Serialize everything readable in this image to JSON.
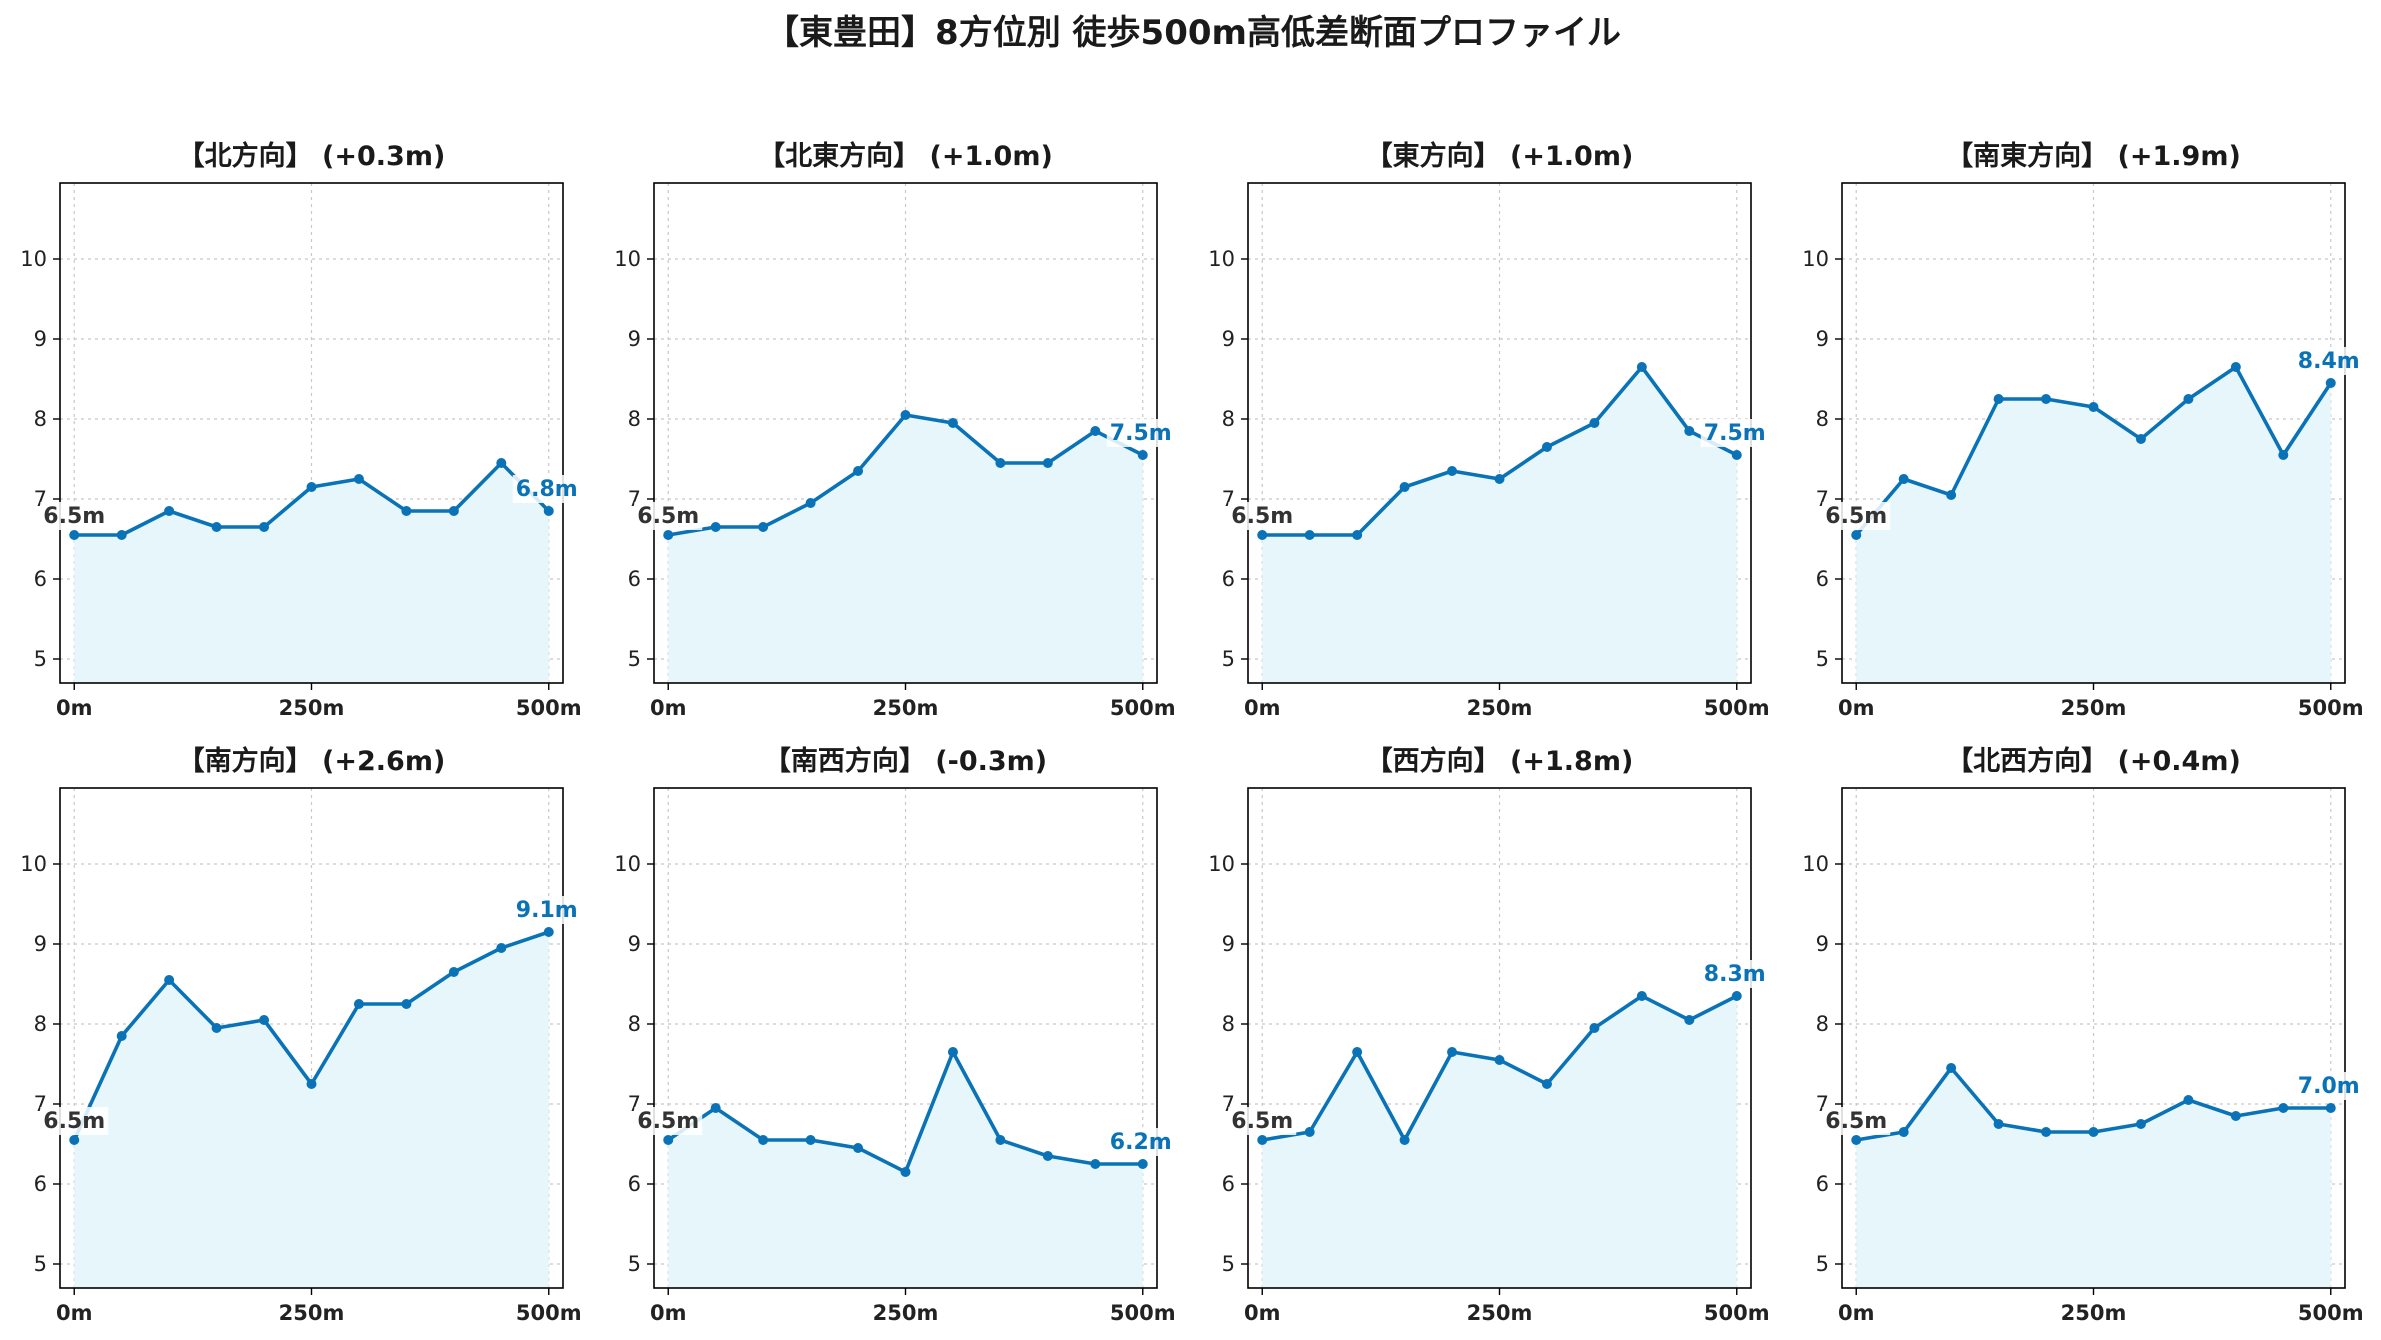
{
  "figure": {
    "title": "【東豊田】8方位別 徒歩500m高低差断面プロファイル"
  },
  "colors": {
    "line": "#0a72b6",
    "fill": "#e6f6fb",
    "grid": "#c8c8c8",
    "start_label": "#333333",
    "end_label": "#0a72b6"
  },
  "chart_data": [
    {
      "type": "area",
      "title": "【北方向】 (+0.3m)",
      "x": [
        0,
        50,
        100,
        150,
        200,
        250,
        300,
        350,
        400,
        450,
        500
      ],
      "y": [
        6.55,
        6.55,
        6.85,
        6.65,
        6.65,
        7.15,
        7.25,
        6.85,
        6.85,
        7.45,
        6.85
      ],
      "xticks": [
        "0m",
        "250m",
        "500m"
      ],
      "yticks": [
        "5",
        "6",
        "7",
        "8",
        "9",
        "10"
      ],
      "xlim": [
        -15,
        515
      ],
      "ylim": [
        4.7,
        10.95
      ],
      "start_label": "6.5m",
      "end_label": "6.8m",
      "grid": true
    },
    {
      "type": "area",
      "title": "【北東方向】 (+1.0m)",
      "x": [
        0,
        50,
        100,
        150,
        200,
        250,
        300,
        350,
        400,
        450,
        500
      ],
      "y": [
        6.55,
        6.65,
        6.65,
        6.95,
        7.35,
        8.05,
        7.95,
        7.45,
        7.45,
        7.85,
        7.55
      ],
      "xticks": [
        "0m",
        "250m",
        "500m"
      ],
      "yticks": [
        "5",
        "6",
        "7",
        "8",
        "9",
        "10"
      ],
      "xlim": [
        -15,
        515
      ],
      "ylim": [
        4.7,
        10.95
      ],
      "start_label": "6.5m",
      "end_label": "7.5m",
      "grid": true
    },
    {
      "type": "area",
      "title": "【東方向】 (+1.0m)",
      "x": [
        0,
        50,
        100,
        150,
        200,
        250,
        300,
        350,
        400,
        450,
        500
      ],
      "y": [
        6.55,
        6.55,
        6.55,
        7.15,
        7.35,
        7.25,
        7.65,
        7.95,
        8.65,
        7.85,
        7.55
      ],
      "xticks": [
        "0m",
        "250m",
        "500m"
      ],
      "yticks": [
        "5",
        "6",
        "7",
        "8",
        "9",
        "10"
      ],
      "xlim": [
        -15,
        515
      ],
      "ylim": [
        4.7,
        10.95
      ],
      "start_label": "6.5m",
      "end_label": "7.5m",
      "grid": true
    },
    {
      "type": "area",
      "title": "【南東方向】 (+1.9m)",
      "x": [
        0,
        50,
        100,
        150,
        200,
        250,
        300,
        350,
        400,
        450,
        500
      ],
      "y": [
        6.55,
        7.25,
        7.05,
        8.25,
        8.25,
        8.15,
        7.75,
        8.25,
        8.65,
        7.55,
        8.45
      ],
      "xticks": [
        "0m",
        "250m",
        "500m"
      ],
      "yticks": [
        "5",
        "6",
        "7",
        "8",
        "9",
        "10"
      ],
      "xlim": [
        -15,
        515
      ],
      "ylim": [
        4.7,
        10.95
      ],
      "start_label": "6.5m",
      "end_label": "8.4m",
      "grid": true
    },
    {
      "type": "area",
      "title": "【南方向】 (+2.6m)",
      "x": [
        0,
        50,
        100,
        150,
        200,
        250,
        300,
        350,
        400,
        450,
        500
      ],
      "y": [
        6.55,
        7.85,
        8.55,
        7.95,
        8.05,
        7.25,
        8.25,
        8.25,
        8.65,
        8.95,
        9.15
      ],
      "xticks": [
        "0m",
        "250m",
        "500m"
      ],
      "yticks": [
        "5",
        "6",
        "7",
        "8",
        "9",
        "10"
      ],
      "xlim": [
        -15,
        515
      ],
      "ylim": [
        4.7,
        10.95
      ],
      "start_label": "6.5m",
      "end_label": "9.1m",
      "grid": true
    },
    {
      "type": "area",
      "title": "【南西方向】 (-0.3m)",
      "x": [
        0,
        50,
        100,
        150,
        200,
        250,
        300,
        350,
        400,
        450,
        500
      ],
      "y": [
        6.55,
        6.95,
        6.55,
        6.55,
        6.45,
        6.15,
        7.65,
        6.55,
        6.35,
        6.25,
        6.25
      ],
      "xticks": [
        "0m",
        "250m",
        "500m"
      ],
      "yticks": [
        "5",
        "6",
        "7",
        "8",
        "9",
        "10"
      ],
      "xlim": [
        -15,
        515
      ],
      "ylim": [
        4.7,
        10.95
      ],
      "start_label": "6.5m",
      "end_label": "6.2m",
      "grid": true
    },
    {
      "type": "area",
      "title": "【西方向】 (+1.8m)",
      "x": [
        0,
        50,
        100,
        150,
        200,
        250,
        300,
        350,
        400,
        450,
        500
      ],
      "y": [
        6.55,
        6.65,
        7.65,
        6.55,
        7.65,
        7.55,
        7.25,
        7.95,
        8.35,
        8.05,
        8.35
      ],
      "xticks": [
        "0m",
        "250m",
        "500m"
      ],
      "yticks": [
        "5",
        "6",
        "7",
        "8",
        "9",
        "10"
      ],
      "xlim": [
        -15,
        515
      ],
      "ylim": [
        4.7,
        10.95
      ],
      "start_label": "6.5m",
      "end_label": "8.3m",
      "grid": true
    },
    {
      "type": "area",
      "title": "【北西方向】 (+0.4m)",
      "x": [
        0,
        50,
        100,
        150,
        200,
        250,
        300,
        350,
        400,
        450,
        500
      ],
      "y": [
        6.55,
        6.65,
        7.45,
        6.75,
        6.65,
        6.65,
        6.75,
        7.05,
        6.85,
        6.95,
        6.95
      ],
      "xticks": [
        "0m",
        "250m",
        "500m"
      ],
      "yticks": [
        "5",
        "6",
        "7",
        "8",
        "9",
        "10"
      ],
      "xlim": [
        -15,
        515
      ],
      "ylim": [
        4.7,
        10.95
      ],
      "start_label": "6.5m",
      "end_label": "7.0m",
      "grid": true
    }
  ]
}
